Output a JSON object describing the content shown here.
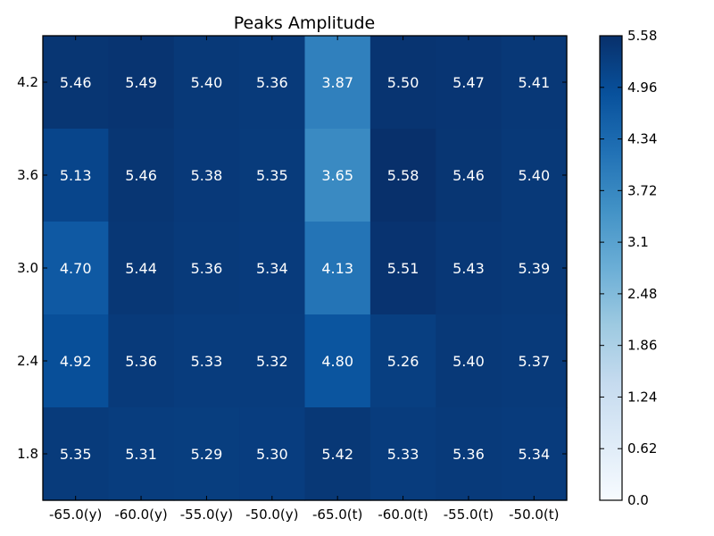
{
  "chart_data": {
    "type": "heatmap",
    "title": "Peaks Amplitude",
    "xlabel": "",
    "ylabel": "",
    "x_categories": [
      "-65.0(y)",
      "-60.0(y)",
      "-55.0(y)",
      "-50.0(y)",
      "-65.0(t)",
      "-60.0(t)",
      "-55.0(t)",
      "-50.0(t)"
    ],
    "y_categories": [
      "4.2",
      "3.6",
      "3.0",
      "2.4",
      "1.8"
    ],
    "values": [
      [
        5.46,
        5.49,
        5.4,
        5.36,
        3.87,
        5.5,
        5.47,
        5.41
      ],
      [
        5.13,
        5.46,
        5.38,
        5.35,
        3.65,
        5.58,
        5.46,
        5.4
      ],
      [
        4.7,
        5.44,
        5.36,
        5.34,
        4.13,
        5.51,
        5.43,
        5.39
      ],
      [
        4.92,
        5.36,
        5.33,
        5.32,
        4.8,
        5.26,
        5.4,
        5.37
      ],
      [
        5.35,
        5.31,
        5.29,
        5.3,
        5.42,
        5.33,
        5.36,
        5.34
      ]
    ],
    "value_labels": [
      [
        "5.46",
        "5.49",
        "5.40",
        "5.36",
        "3.87",
        "5.50",
        "5.47",
        "5.41"
      ],
      [
        "5.13",
        "5.46",
        "5.38",
        "5.35",
        "3.65",
        "5.58",
        "5.46",
        "5.40"
      ],
      [
        "4.70",
        "5.44",
        "5.36",
        "5.34",
        "4.13",
        "5.51",
        "5.43",
        "5.39"
      ],
      [
        "4.92",
        "5.36",
        "5.33",
        "5.32",
        "4.80",
        "5.26",
        "5.40",
        "5.37"
      ],
      [
        "5.35",
        "5.31",
        "5.29",
        "5.30",
        "5.42",
        "5.33",
        "5.36",
        "5.34"
      ]
    ],
    "colorbar": {
      "min": 0.0,
      "max": 5.58,
      "ticks": [
        0.0,
        0.62,
        1.24,
        1.86,
        2.48,
        3.1,
        3.72,
        4.34,
        4.96,
        5.58
      ],
      "tick_labels": [
        "0.0",
        "0.62",
        "1.24",
        "1.86",
        "2.48",
        "3.1",
        "3.72",
        "4.34",
        "4.96",
        "5.58"
      ],
      "colormap": "Blues",
      "color_low": "#f7fbff",
      "color_high": "#08306b"
    },
    "grid": false,
    "legend": "none"
  }
}
